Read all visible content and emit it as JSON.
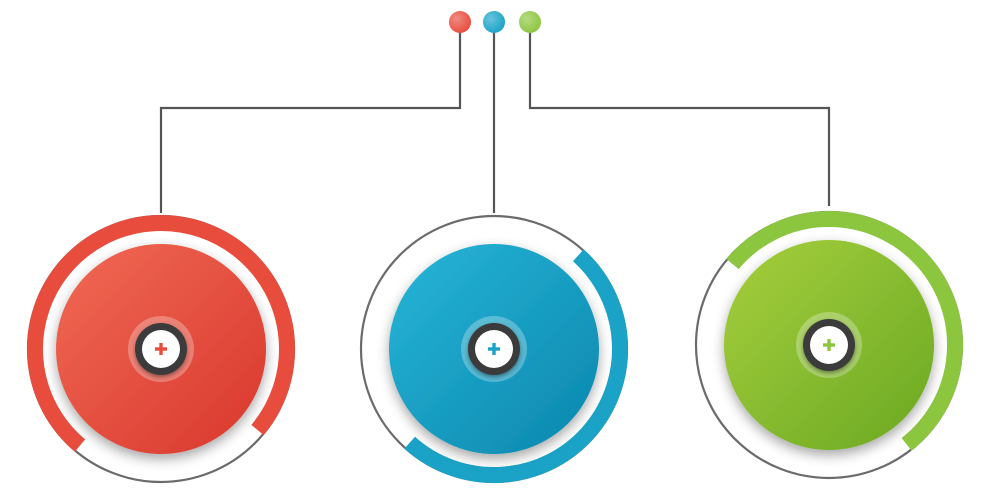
{
  "colors": {
    "red": "#e84c3d",
    "blue": "#1aa3c7",
    "green": "#8cc63f",
    "connector": "#555555",
    "ring_outline": "#6b6b6b",
    "center_dark": "#3a3a3a",
    "plus_red": "#e84c3d",
    "plus_blue": "#1aa3c7",
    "plus_green": "#8cc63f"
  },
  "nodes": [
    {
      "id": "red",
      "color_key": "red",
      "icon": "plus-icon"
    },
    {
      "id": "blue",
      "color_key": "blue",
      "icon": "plus-icon"
    },
    {
      "id": "green",
      "color_key": "green",
      "icon": "plus-icon"
    }
  ],
  "top_dots": [
    {
      "id": "red",
      "color_key": "red"
    },
    {
      "id": "blue",
      "color_key": "blue"
    },
    {
      "id": "green",
      "color_key": "green"
    }
  ]
}
